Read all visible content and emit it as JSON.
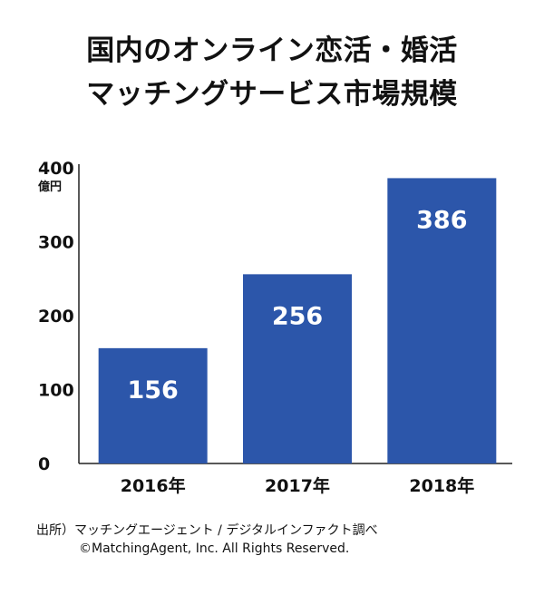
{
  "chart_data": {
    "type": "bar",
    "title": [
      "国内のオンライン恋活・婚活",
      "マッチングサービス市場規模"
    ],
    "categories": [
      "2016年",
      "2017年",
      "2018年"
    ],
    "values": [
      156,
      256,
      386
    ],
    "data_labels": [
      "156",
      "256",
      "386"
    ],
    "yunit": "億円",
    "yticks": [
      "0",
      "100",
      "200",
      "300",
      "400"
    ],
    "ylim": [
      0,
      400
    ],
    "grid": false,
    "bar_color": "#2c56aa",
    "label_color": "#ffffff"
  },
  "source": {
    "line1": "出所）マッチングエージェント / デジタルインファクト調べ",
    "line2": "©MatchingAgent, Inc. All Rights Reserved."
  }
}
